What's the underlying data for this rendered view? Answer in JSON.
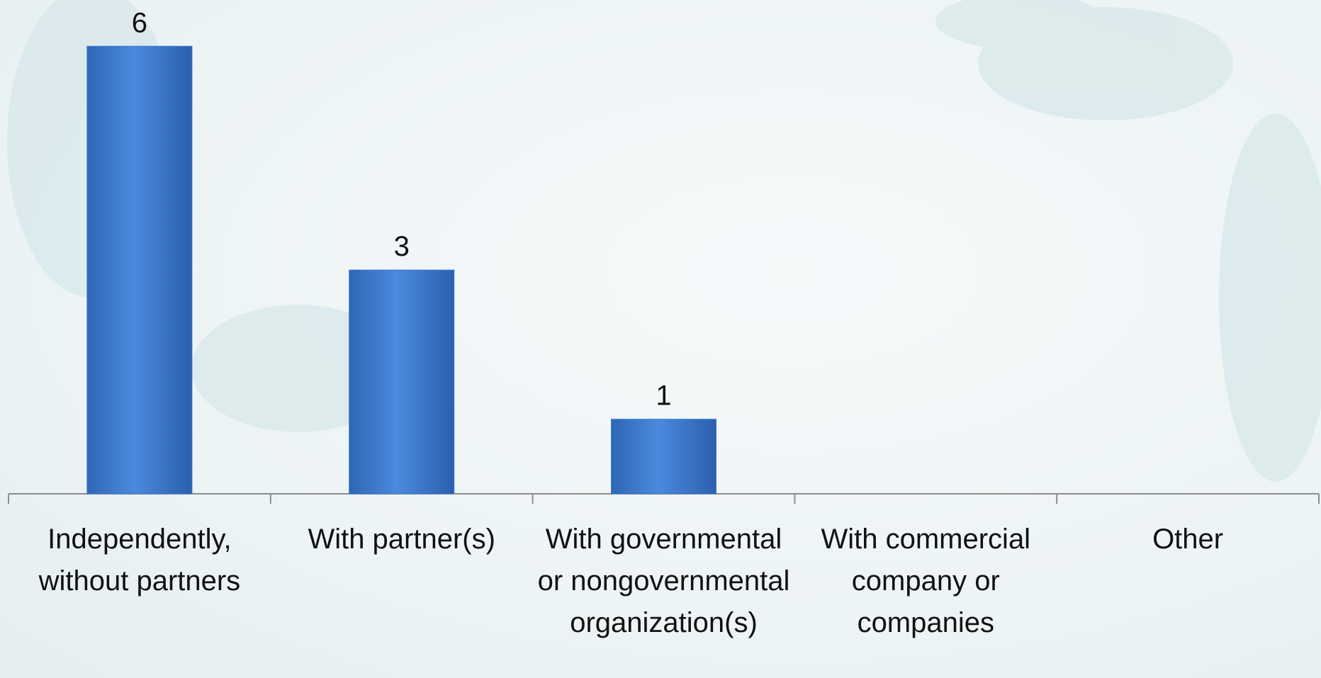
{
  "chart_data": {
    "type": "bar",
    "categories": [
      "Independently, without partners",
      "With partner(s)",
      "With governmental or nongovernmental organization(s)",
      "With commercial company or companies",
      "Other"
    ],
    "values": [
      6,
      3,
      1,
      0,
      0
    ],
    "value_labels": [
      "6",
      "3",
      "1",
      null,
      null
    ],
    "color": "#3a78cc",
    "ylim": [
      0,
      6.62
    ],
    "grid": false
  }
}
